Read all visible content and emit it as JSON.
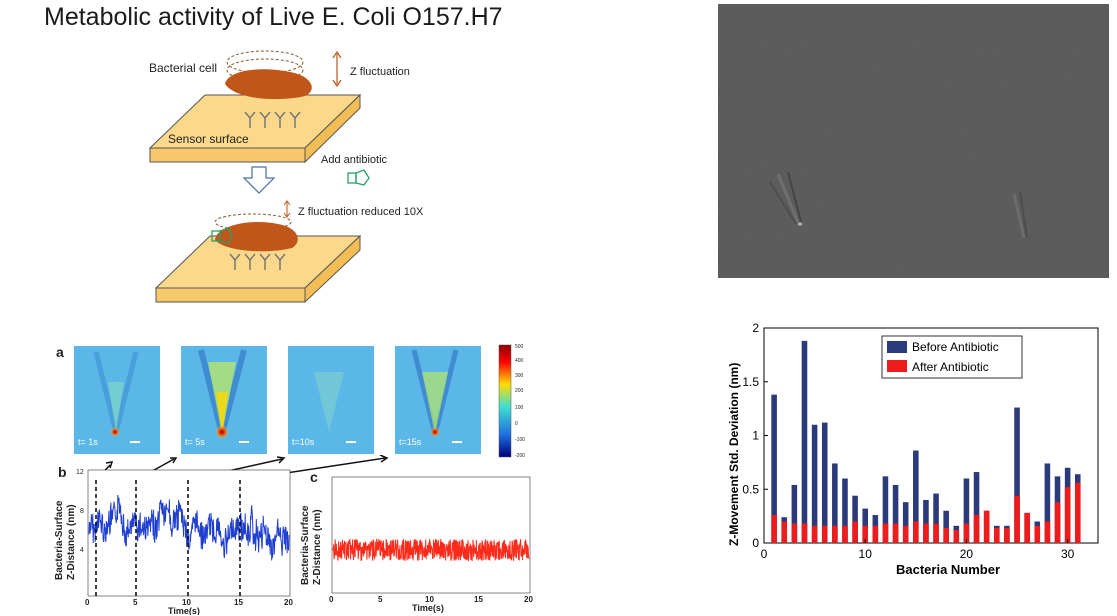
{
  "title": "Metabolic activity of Live E. Coli O157.H7",
  "schematic": {
    "bacterial_cell": "Bacterial cell",
    "z_fluctuation": "Z fluctuation",
    "sensor_surface": "Sensor surface",
    "add_antibiotic": "Add antibiotic",
    "z_fluctuation_reduced": "Z fluctuation reduced 10X"
  },
  "panel_a": {
    "label": "a",
    "frames": [
      "t= 1s",
      "t= 5s",
      "t=10s",
      "t=15s"
    ],
    "colorbar_ticks": [
      "500",
      "400",
      "300",
      "200",
      "100",
      "0",
      "-100",
      "-200"
    ]
  },
  "panel_b": {
    "label": "b",
    "ylabel_1": "Bacteria-Surface",
    "ylabel_2": "Z-Distance (nm)",
    "xlabel": "Time(s)",
    "xticks": [
      "0",
      "5",
      "10",
      "15",
      "20"
    ],
    "yticks": [
      "12",
      "8",
      "4"
    ]
  },
  "panel_c": {
    "label": "c",
    "ylabel_1": "Bacteria-Surface",
    "ylabel_2": "Z-Distance (nm)",
    "xlabel": "Time(s)",
    "xticks": [
      "0",
      "5",
      "10",
      "15",
      "20"
    ]
  },
  "chart_data": {
    "type": "bar",
    "xlabel": "Bacteria Number",
    "ylabel": "Z-Movement Std. Deviation (nm)",
    "ylim": [
      0,
      2
    ],
    "xlim": [
      0,
      33
    ],
    "yticks": [
      "0",
      "0.5",
      "1",
      "1.5",
      "2"
    ],
    "xticks": [
      "0",
      "10",
      "20",
      "30"
    ],
    "legend_position": "top-right",
    "x": [
      1,
      2,
      3,
      4,
      5,
      6,
      7,
      8,
      9,
      10,
      11,
      12,
      13,
      14,
      15,
      16,
      17,
      18,
      19,
      20,
      21,
      22,
      23,
      24,
      25,
      26,
      27,
      28,
      29,
      30,
      31
    ],
    "series": [
      {
        "name": "Before Antibiotic",
        "color": "#2b3a7a",
        "values": [
          1.38,
          0.24,
          0.54,
          1.88,
          1.1,
          1.12,
          0.74,
          0.6,
          0.44,
          0.32,
          0.26,
          0.62,
          0.54,
          0.38,
          0.86,
          0.4,
          0.46,
          0.3,
          0.16,
          0.6,
          0.66,
          0.3,
          0.16,
          0.16,
          1.26,
          0.28,
          0.2,
          0.74,
          0.62,
          0.7,
          0.64
        ]
      },
      {
        "name": "After Antibiotic",
        "color": "#ee1c1c",
        "values": [
          0.26,
          0.2,
          0.18,
          0.18,
          0.16,
          0.16,
          0.16,
          0.16,
          0.2,
          0.16,
          0.16,
          0.18,
          0.18,
          0.16,
          0.2,
          0.18,
          0.18,
          0.14,
          0.12,
          0.18,
          0.26,
          0.3,
          0.14,
          0.14,
          0.44,
          0.28,
          0.16,
          0.2,
          0.38,
          0.52,
          0.56
        ]
      }
    ]
  }
}
